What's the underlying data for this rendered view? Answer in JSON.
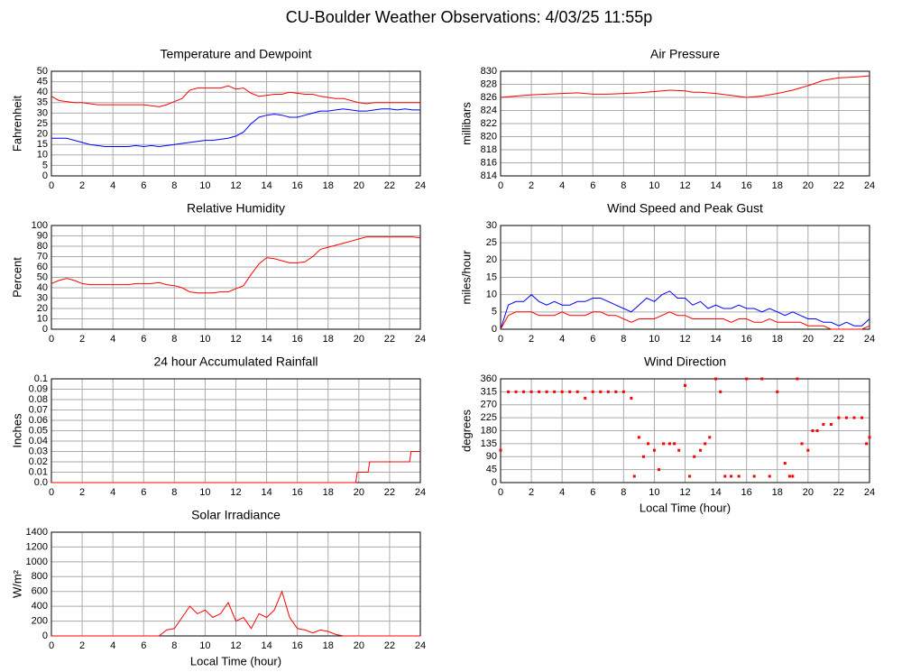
{
  "title": "CU-Boulder Weather Observations: 4/03/25 11:55p",
  "chart_data": [
    {
      "type": "line",
      "title": "Temperature and Dewpoint",
      "ylabel": "Fahrenheit",
      "x": [
        0,
        0.5,
        1,
        1.5,
        2,
        2.5,
        3,
        3.5,
        4,
        4.5,
        5,
        5.5,
        6,
        6.5,
        7,
        7.5,
        8,
        8.5,
        9,
        9.5,
        10,
        10.5,
        11,
        11.5,
        12,
        12.5,
        13,
        13.5,
        14,
        14.5,
        15,
        15.5,
        16,
        16.5,
        17,
        17.5,
        18,
        18.5,
        19,
        19.5,
        20,
        20.5,
        21,
        21.5,
        22,
        22.5,
        23,
        23.5,
        24
      ],
      "series": [
        {
          "color": "#ff0000",
          "values": [
            38,
            36,
            35.5,
            35,
            35,
            34.5,
            34,
            34,
            34,
            34,
            34,
            34,
            34,
            33.5,
            33,
            34,
            35.5,
            37,
            41,
            42,
            42,
            42,
            42,
            43,
            41.5,
            42,
            39.5,
            38,
            38.5,
            39,
            39,
            40,
            39.5,
            39,
            39,
            38,
            37.5,
            37,
            37,
            36,
            35,
            34.5,
            35,
            35,
            35,
            35,
            35,
            35,
            35
          ]
        },
        {
          "color": "#0000ff",
          "values": [
            18,
            18,
            18,
            17,
            16,
            15,
            14.5,
            14,
            14,
            14,
            14,
            14.5,
            14,
            14.5,
            14,
            14.5,
            15,
            15.5,
            16,
            16.5,
            17,
            17,
            17.5,
            18,
            19,
            21,
            25,
            28,
            29,
            29.5,
            29,
            28,
            28,
            29,
            30,
            31,
            31,
            31.5,
            32,
            31.5,
            31,
            31,
            31.5,
            32,
            32,
            31.5,
            32,
            31.5,
            31.5
          ]
        }
      ],
      "xlim": [
        0,
        24
      ],
      "xticks": [
        0,
        2,
        4,
        6,
        8,
        10,
        12,
        14,
        16,
        18,
        20,
        22,
        24
      ],
      "ylim": [
        0,
        50
      ],
      "yticks": [
        0,
        5,
        10,
        15,
        20,
        25,
        30,
        35,
        40,
        45,
        50
      ],
      "grid": true
    },
    {
      "type": "line",
      "title": "Air Pressure",
      "ylabel": "millibars",
      "x": [
        0,
        1,
        2,
        3,
        4,
        5,
        6,
        7,
        8,
        9,
        10,
        11,
        12,
        12.5,
        13,
        14,
        15,
        16,
        17,
        18,
        19,
        20,
        21,
        22,
        23,
        24
      ],
      "series": [
        {
          "color": "#ff0000",
          "values": [
            826,
            826.2,
            826.4,
            826.5,
            826.6,
            826.7,
            826.5,
            826.5,
            826.6,
            826.7,
            826.9,
            827.1,
            827,
            826.8,
            826.8,
            826.6,
            826.3,
            826,
            826.2,
            826.6,
            827.1,
            827.8,
            828.6,
            829,
            829.1,
            829.3
          ]
        }
      ],
      "xlim": [
        0,
        24
      ],
      "xticks": [
        0,
        2,
        4,
        6,
        8,
        10,
        12,
        14,
        16,
        18,
        20,
        22,
        24
      ],
      "ylim": [
        814,
        830
      ],
      "yticks": [
        814,
        816,
        818,
        820,
        822,
        824,
        826,
        828,
        830
      ],
      "grid": true
    },
    {
      "type": "line",
      "title": "Relative Humidity",
      "ylabel": "Percent",
      "x": [
        0,
        0.5,
        1,
        1.5,
        2,
        2.5,
        3,
        3.5,
        4,
        4.5,
        5,
        5.5,
        6,
        6.5,
        7,
        7.5,
        8,
        8.5,
        9,
        9.5,
        10,
        10.5,
        11,
        11.5,
        12,
        12.5,
        13,
        13.5,
        14,
        14.5,
        15,
        15.5,
        16,
        16.5,
        17,
        17.5,
        18,
        18.5,
        19,
        19.5,
        20,
        20.5,
        21,
        21.5,
        22,
        22.5,
        23,
        23.5,
        24
      ],
      "series": [
        {
          "color": "#ff0000",
          "values": [
            44,
            47,
            49,
            47,
            44,
            43,
            43,
            43,
            43,
            43,
            43,
            44,
            44,
            44,
            45,
            43,
            42,
            40,
            36,
            35,
            35,
            35,
            36,
            36,
            39,
            42,
            53,
            63,
            69,
            68,
            66,
            64,
            64,
            65,
            70,
            77,
            79,
            81,
            83,
            85,
            87,
            89,
            89,
            89,
            89,
            89,
            89,
            89,
            88
          ]
        }
      ],
      "xlim": [
        0,
        24
      ],
      "xticks": [
        0,
        2,
        4,
        6,
        8,
        10,
        12,
        14,
        16,
        18,
        20,
        22,
        24
      ],
      "ylim": [
        0,
        100
      ],
      "yticks": [
        0,
        10,
        20,
        30,
        40,
        50,
        60,
        70,
        80,
        90,
        100
      ],
      "grid": true
    },
    {
      "type": "line",
      "title": "Wind Speed and Peak Gust",
      "ylabel": "miles/hour",
      "x": [
        0,
        0.5,
        1,
        1.5,
        2,
        2.5,
        3,
        3.5,
        4,
        4.5,
        5,
        5.5,
        6,
        6.5,
        7,
        7.5,
        8,
        8.5,
        9,
        9.5,
        10,
        10.5,
        11,
        11.5,
        12,
        12.5,
        13,
        13.5,
        14,
        14.5,
        15,
        15.5,
        16,
        16.5,
        17,
        17.5,
        18,
        18.5,
        19,
        19.5,
        20,
        20.5,
        21,
        21.5,
        22,
        22.5,
        23,
        23.5,
        24
      ],
      "series": [
        {
          "color": "#0000ff",
          "values": [
            0,
            7,
            8,
            8,
            10,
            8,
            7,
            8,
            7,
            7,
            8,
            8,
            9,
            9,
            8,
            7,
            6,
            5,
            7,
            9,
            8,
            10,
            11,
            9,
            9,
            7,
            8,
            6,
            7,
            6,
            6,
            7,
            6,
            6,
            5,
            6,
            5,
            4,
            5,
            4,
            3,
            3,
            2,
            2,
            1,
            2,
            1,
            1,
            3
          ]
        },
        {
          "color": "#ff0000",
          "values": [
            0,
            4,
            5,
            5,
            5,
            4,
            4,
            4,
            5,
            4,
            4,
            4,
            5,
            5,
            4,
            4,
            3,
            2,
            3,
            3,
            3,
            4,
            5,
            4,
            4,
            3,
            3,
            3,
            3,
            3,
            2,
            3,
            3,
            2,
            2,
            3,
            2,
            2,
            2,
            2,
            1,
            1,
            1,
            0,
            0,
            0,
            0,
            0,
            1
          ]
        }
      ],
      "xlim": [
        0,
        24
      ],
      "xticks": [
        0,
        2,
        4,
        6,
        8,
        10,
        12,
        14,
        16,
        18,
        20,
        22,
        24
      ],
      "ylim": [
        0,
        30
      ],
      "yticks": [
        0,
        5,
        10,
        15,
        20,
        25,
        30
      ],
      "grid": true
    },
    {
      "type": "line",
      "title": "24 hour Accumulated Rainfall",
      "ylabel": "Inches",
      "x": [
        0,
        19.8,
        19.9,
        20.6,
        20.7,
        23.3,
        23.4,
        24
      ],
      "series": [
        {
          "color": "#ff0000",
          "values": [
            0,
            0,
            0.01,
            0.01,
            0.02,
            0.02,
            0.03,
            0.03
          ]
        }
      ],
      "xlim": [
        0,
        24
      ],
      "xticks": [
        0,
        2,
        4,
        6,
        8,
        10,
        12,
        14,
        16,
        18,
        20,
        22,
        24
      ],
      "ylim": [
        0,
        0.1
      ],
      "yticks": [
        {
          "value": 0,
          "label": "0.0"
        },
        0.01,
        0.02,
        0.03,
        0.04,
        0.05,
        0.06,
        0.07,
        0.08,
        0.09,
        0.1
      ],
      "grid": true
    },
    {
      "type": "scatter",
      "title": "Wind Direction",
      "ylabel": "degrees",
      "xlabel": "Local Time (hour)",
      "color": "#ff0000",
      "x": [
        0,
        0.5,
        1,
        1.5,
        2,
        2.5,
        3,
        3.5,
        4,
        4.5,
        5,
        5.5,
        6,
        6.5,
        7,
        7.5,
        8,
        8.5,
        8.7,
        9,
        9.3,
        9.6,
        10,
        10.3,
        10.6,
        11,
        11.3,
        11.6,
        12,
        12.3,
        12.6,
        13,
        13.3,
        13.6,
        14,
        14.3,
        14.6,
        15,
        15.5,
        16,
        16.5,
        17,
        17.5,
        18,
        18.5,
        18.8,
        19,
        19.3,
        19.6,
        20,
        20.3,
        20.6,
        21,
        21.5,
        22,
        22.5,
        23,
        23.5,
        23.8,
        24
      ],
      "values": [
        112,
        315,
        315,
        315,
        315,
        315,
        315,
        315,
        315,
        315,
        315,
        293,
        315,
        315,
        315,
        315,
        315,
        293,
        22,
        157,
        90,
        135,
        112,
        45,
        135,
        135,
        135,
        112,
        337,
        22,
        90,
        112,
        135,
        157,
        360,
        315,
        22,
        22,
        22,
        360,
        22,
        360,
        22,
        315,
        67,
        22,
        22,
        360,
        135,
        112,
        180,
        180,
        202,
        202,
        225,
        225,
        225,
        225,
        135,
        157
      ],
      "xlim": [
        0,
        24
      ],
      "xticks": [
        0,
        2,
        4,
        6,
        8,
        10,
        12,
        14,
        16,
        18,
        20,
        22,
        24
      ],
      "ylim": [
        0,
        360
      ],
      "yticks": [
        0,
        45,
        90,
        135,
        180,
        225,
        270,
        315,
        360
      ],
      "grid": true
    },
    {
      "type": "line",
      "title": "Solar Irradiance",
      "ylabel": "W/m²",
      "xlabel": "Local Time (hour)",
      "x": [
        0,
        0.5,
        1,
        1.5,
        2,
        2.5,
        3,
        3.5,
        4,
        4.5,
        5,
        5.5,
        6,
        6.5,
        7,
        7.5,
        8,
        8.5,
        9,
        9.5,
        10,
        10.5,
        11,
        11.5,
        12,
        12.5,
        13,
        13.5,
        14,
        14.5,
        15,
        15.5,
        16,
        16.5,
        17,
        17.5,
        18,
        18.5,
        19,
        19.5,
        20,
        20.5,
        21,
        21.5,
        22,
        22.5,
        23,
        23.5,
        24
      ],
      "series": [
        {
          "color": "#ff0000",
          "values": [
            0,
            0,
            0,
            0,
            0,
            0,
            0,
            0,
            0,
            0,
            0,
            0,
            0,
            0,
            0,
            80,
            100,
            250,
            400,
            300,
            350,
            250,
            300,
            450,
            200,
            250,
            100,
            300,
            250,
            350,
            600,
            250,
            100,
            80,
            40,
            80,
            60,
            20,
            0,
            0,
            0,
            0,
            0,
            0,
            0,
            0,
            0,
            0,
            0
          ]
        }
      ],
      "xlim": [
        0,
        24
      ],
      "xticks": [
        0,
        2,
        4,
        6,
        8,
        10,
        12,
        14,
        16,
        18,
        20,
        22,
        24
      ],
      "ylim": [
        0,
        1400
      ],
      "yticks": [
        0,
        200,
        400,
        600,
        800,
        1000,
        1200,
        1400
      ],
      "grid": true
    }
  ]
}
